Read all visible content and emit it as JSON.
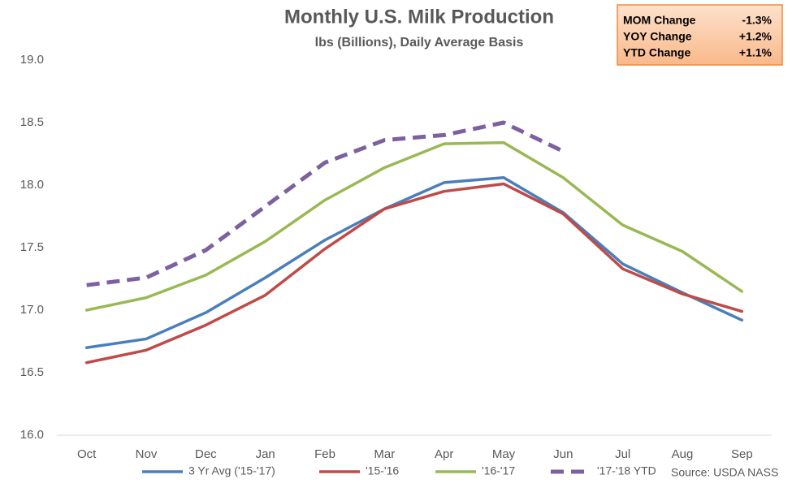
{
  "chart_data": {
    "type": "line",
    "title": "Monthly U.S. Milk Production",
    "subtitle": "lbs (Billions), Daily Average Basis",
    "source": "Source: USDA NASS",
    "categories": [
      "Oct",
      "Nov",
      "Dec",
      "Jan",
      "Feb",
      "Mar",
      "Apr",
      "May",
      "Jun",
      "Jul",
      "Aug",
      "Sep"
    ],
    "series": [
      {
        "name": "3 Yr Avg ('15-'17)",
        "color": "#4a7ebb",
        "dash": false,
        "values": [
          16.7,
          16.77,
          16.98,
          17.26,
          17.56,
          17.81,
          18.02,
          18.06,
          17.78,
          17.37,
          17.14,
          16.92
        ]
      },
      {
        "name": "'15-'16",
        "color": "#be4b48",
        "dash": false,
        "values": [
          16.58,
          16.68,
          16.88,
          17.12,
          17.49,
          17.81,
          17.95,
          18.01,
          17.77,
          17.33,
          17.13,
          16.99
        ]
      },
      {
        "name": "'16-'17",
        "color": "#98b954",
        "dash": false,
        "values": [
          17.0,
          17.1,
          17.28,
          17.55,
          17.88,
          18.14,
          18.33,
          18.34,
          18.06,
          17.68,
          17.47,
          17.15
        ]
      },
      {
        "name": "'17-'18 YTD",
        "color": "#7d60a0",
        "dash": true,
        "values": [
          17.2,
          17.26,
          17.48,
          17.83,
          18.18,
          18.36,
          18.4,
          18.5,
          18.27,
          null,
          null,
          null
        ]
      }
    ],
    "ylim": [
      16.0,
      19.0
    ],
    "yticks": [
      {
        "value": 16.0,
        "label": "16.0"
      },
      {
        "value": 16.5,
        "label": "16.5"
      },
      {
        "value": 17.0,
        "label": "17.0"
      },
      {
        "value": 17.5,
        "label": "17.5"
      },
      {
        "value": 18.0,
        "label": "18.0"
      },
      {
        "value": 18.5,
        "label": "18.5"
      },
      {
        "value": 19.0,
        "label": "19.0"
      }
    ],
    "grid": false,
    "legend": "bottom",
    "summary": [
      {
        "label": "MOM Change",
        "value": -1.3,
        "value_label": "-1.3%"
      },
      {
        "label": "YOY Change",
        "value": 1.2,
        "value_label": "+1.2%"
      },
      {
        "label": "YTD Change",
        "value": 1.1,
        "value_label": "+1.1%"
      }
    ]
  }
}
